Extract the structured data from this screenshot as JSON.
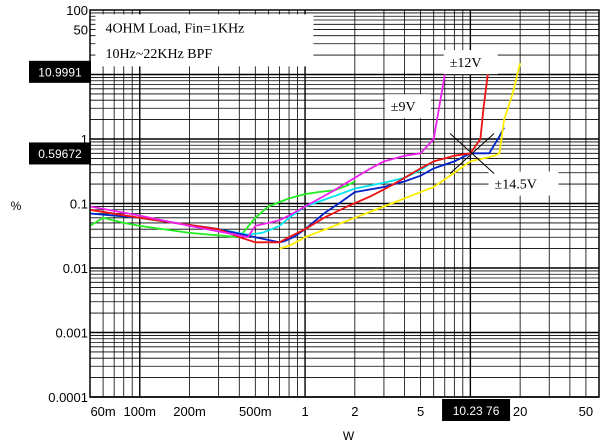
{
  "chart_data": {
    "type": "line",
    "xscale": "log",
    "yscale": "log",
    "xlim": [
      0.05,
      60
    ],
    "ylim": [
      0.0001,
      100
    ],
    "xlabel": "W",
    "ylabel": "%",
    "grid": true,
    "x_ticks": [
      {
        "value": 0.06,
        "label": "60m"
      },
      {
        "value": 0.1,
        "label": "100m"
      },
      {
        "value": 0.2,
        "label": "200m"
      },
      {
        "value": 0.5,
        "label": "500m"
      },
      {
        "value": 1,
        "label": "1"
      },
      {
        "value": 2,
        "label": "2"
      },
      {
        "value": 5,
        "label": "5"
      },
      {
        "value": 20,
        "label": "20"
      },
      {
        "value": 50,
        "label": "50"
      }
    ],
    "y_ticks": [
      {
        "value": 100,
        "label": "100"
      },
      {
        "value": 50,
        "label": "50"
      },
      {
        "value": 1,
        "label": "1"
      },
      {
        "value": 0.1,
        "label": "0.1"
      },
      {
        "value": 0.01,
        "label": "0.01"
      },
      {
        "value": 0.001,
        "label": "0.001"
      },
      {
        "value": 0.0001,
        "label": "0.0001"
      }
    ],
    "annotations": [
      {
        "text": "4OHM Load, Fin=1KHz",
        "at": [
          0.062,
          45
        ]
      },
      {
        "text": "10Hz~22KHz BPF",
        "at": [
          0.062,
          18
        ]
      },
      {
        "text": "±9V",
        "at": [
          3.3,
          2.7
        ]
      },
      {
        "text": "±12V",
        "at": [
          7.5,
          13
        ]
      },
      {
        "text": "±14.5V",
        "at": [
          14,
          0.17
        ]
      }
    ],
    "cursor_readouts": {
      "y_upper": {
        "label": "10.9991",
        "value": 10.9991
      },
      "y_lower": {
        "label": "0.59672",
        "value": 0.59672
      },
      "x": {
        "label": "10.23 76",
        "value": 10.2376
      }
    },
    "series": [
      {
        "color": "#22ee22",
        "x": [
          0.05,
          0.06,
          0.08,
          0.1,
          0.2,
          0.4,
          0.5,
          0.6,
          0.8,
          1,
          1.2,
          1.5,
          1.8,
          2
        ],
        "y": [
          0.045,
          0.06,
          0.05,
          0.045,
          0.035,
          0.03,
          0.06,
          0.09,
          0.12,
          0.14,
          0.15,
          0.16,
          0.19,
          0.22
        ]
      },
      {
        "color": "#00e5ee",
        "x": [
          0.05,
          0.1,
          0.3,
          0.45,
          0.55,
          0.7,
          0.8,
          1,
          1.5,
          2,
          3,
          4,
          5,
          6
        ],
        "y": [
          0.07,
          0.06,
          0.04,
          0.033,
          0.035,
          0.045,
          0.06,
          0.09,
          0.13,
          0.17,
          0.21,
          0.25,
          0.33,
          0.45
        ]
      },
      {
        "color": "#0022cc",
        "x": [
          0.05,
          0.1,
          0.3,
          0.5,
          0.7,
          0.75,
          0.85,
          1,
          1.3,
          1.6,
          2,
          3,
          4,
          5,
          6,
          8,
          10,
          13,
          15,
          16
        ],
        "y": [
          0.07,
          0.06,
          0.04,
          0.03,
          0.025,
          0.026,
          0.03,
          0.04,
          0.07,
          0.1,
          0.15,
          0.18,
          0.22,
          0.27,
          0.35,
          0.45,
          0.6,
          0.6,
          1.1,
          1.5
        ]
      },
      {
        "color": "#ee1111",
        "x": [
          0.05,
          0.1,
          0.3,
          0.4,
          0.5,
          0.6,
          0.7,
          0.8,
          1,
          1.3,
          1.8,
          2.5,
          3.2,
          4,
          5,
          6,
          7,
          8,
          10,
          11.5,
          12,
          13
        ],
        "y": [
          0.08,
          0.06,
          0.04,
          0.03,
          0.025,
          0.025,
          0.025,
          0.03,
          0.04,
          0.06,
          0.09,
          0.13,
          0.18,
          0.25,
          0.35,
          0.45,
          0.5,
          0.55,
          0.6,
          1.0,
          3.0,
          15.0
        ]
      },
      {
        "color": "#ffee00",
        "x": [
          0.7,
          0.8,
          1,
          1.5,
          2,
          3,
          4,
          5,
          6,
          8,
          10,
          12,
          14,
          15,
          16,
          18,
          20
        ],
        "y": [
          0.02,
          0.022,
          0.03,
          0.045,
          0.06,
          0.09,
          0.12,
          0.15,
          0.18,
          0.3,
          0.45,
          0.5,
          0.55,
          0.6,
          2.0,
          5.0,
          15.0
        ]
      },
      {
        "color": "#ee22ee",
        "x": [
          0.05,
          0.1,
          0.2,
          0.4,
          0.45,
          0.5,
          0.6,
          0.7,
          0.8,
          1,
          1.5,
          2,
          2.5,
          3,
          4,
          5,
          6,
          7
        ],
        "y": [
          0.09,
          0.065,
          0.045,
          0.032,
          0.03,
          0.045,
          0.05,
          0.055,
          0.065,
          0.09,
          0.16,
          0.25,
          0.35,
          0.45,
          0.55,
          0.6,
          1.0,
          10.0
        ]
      }
    ]
  }
}
